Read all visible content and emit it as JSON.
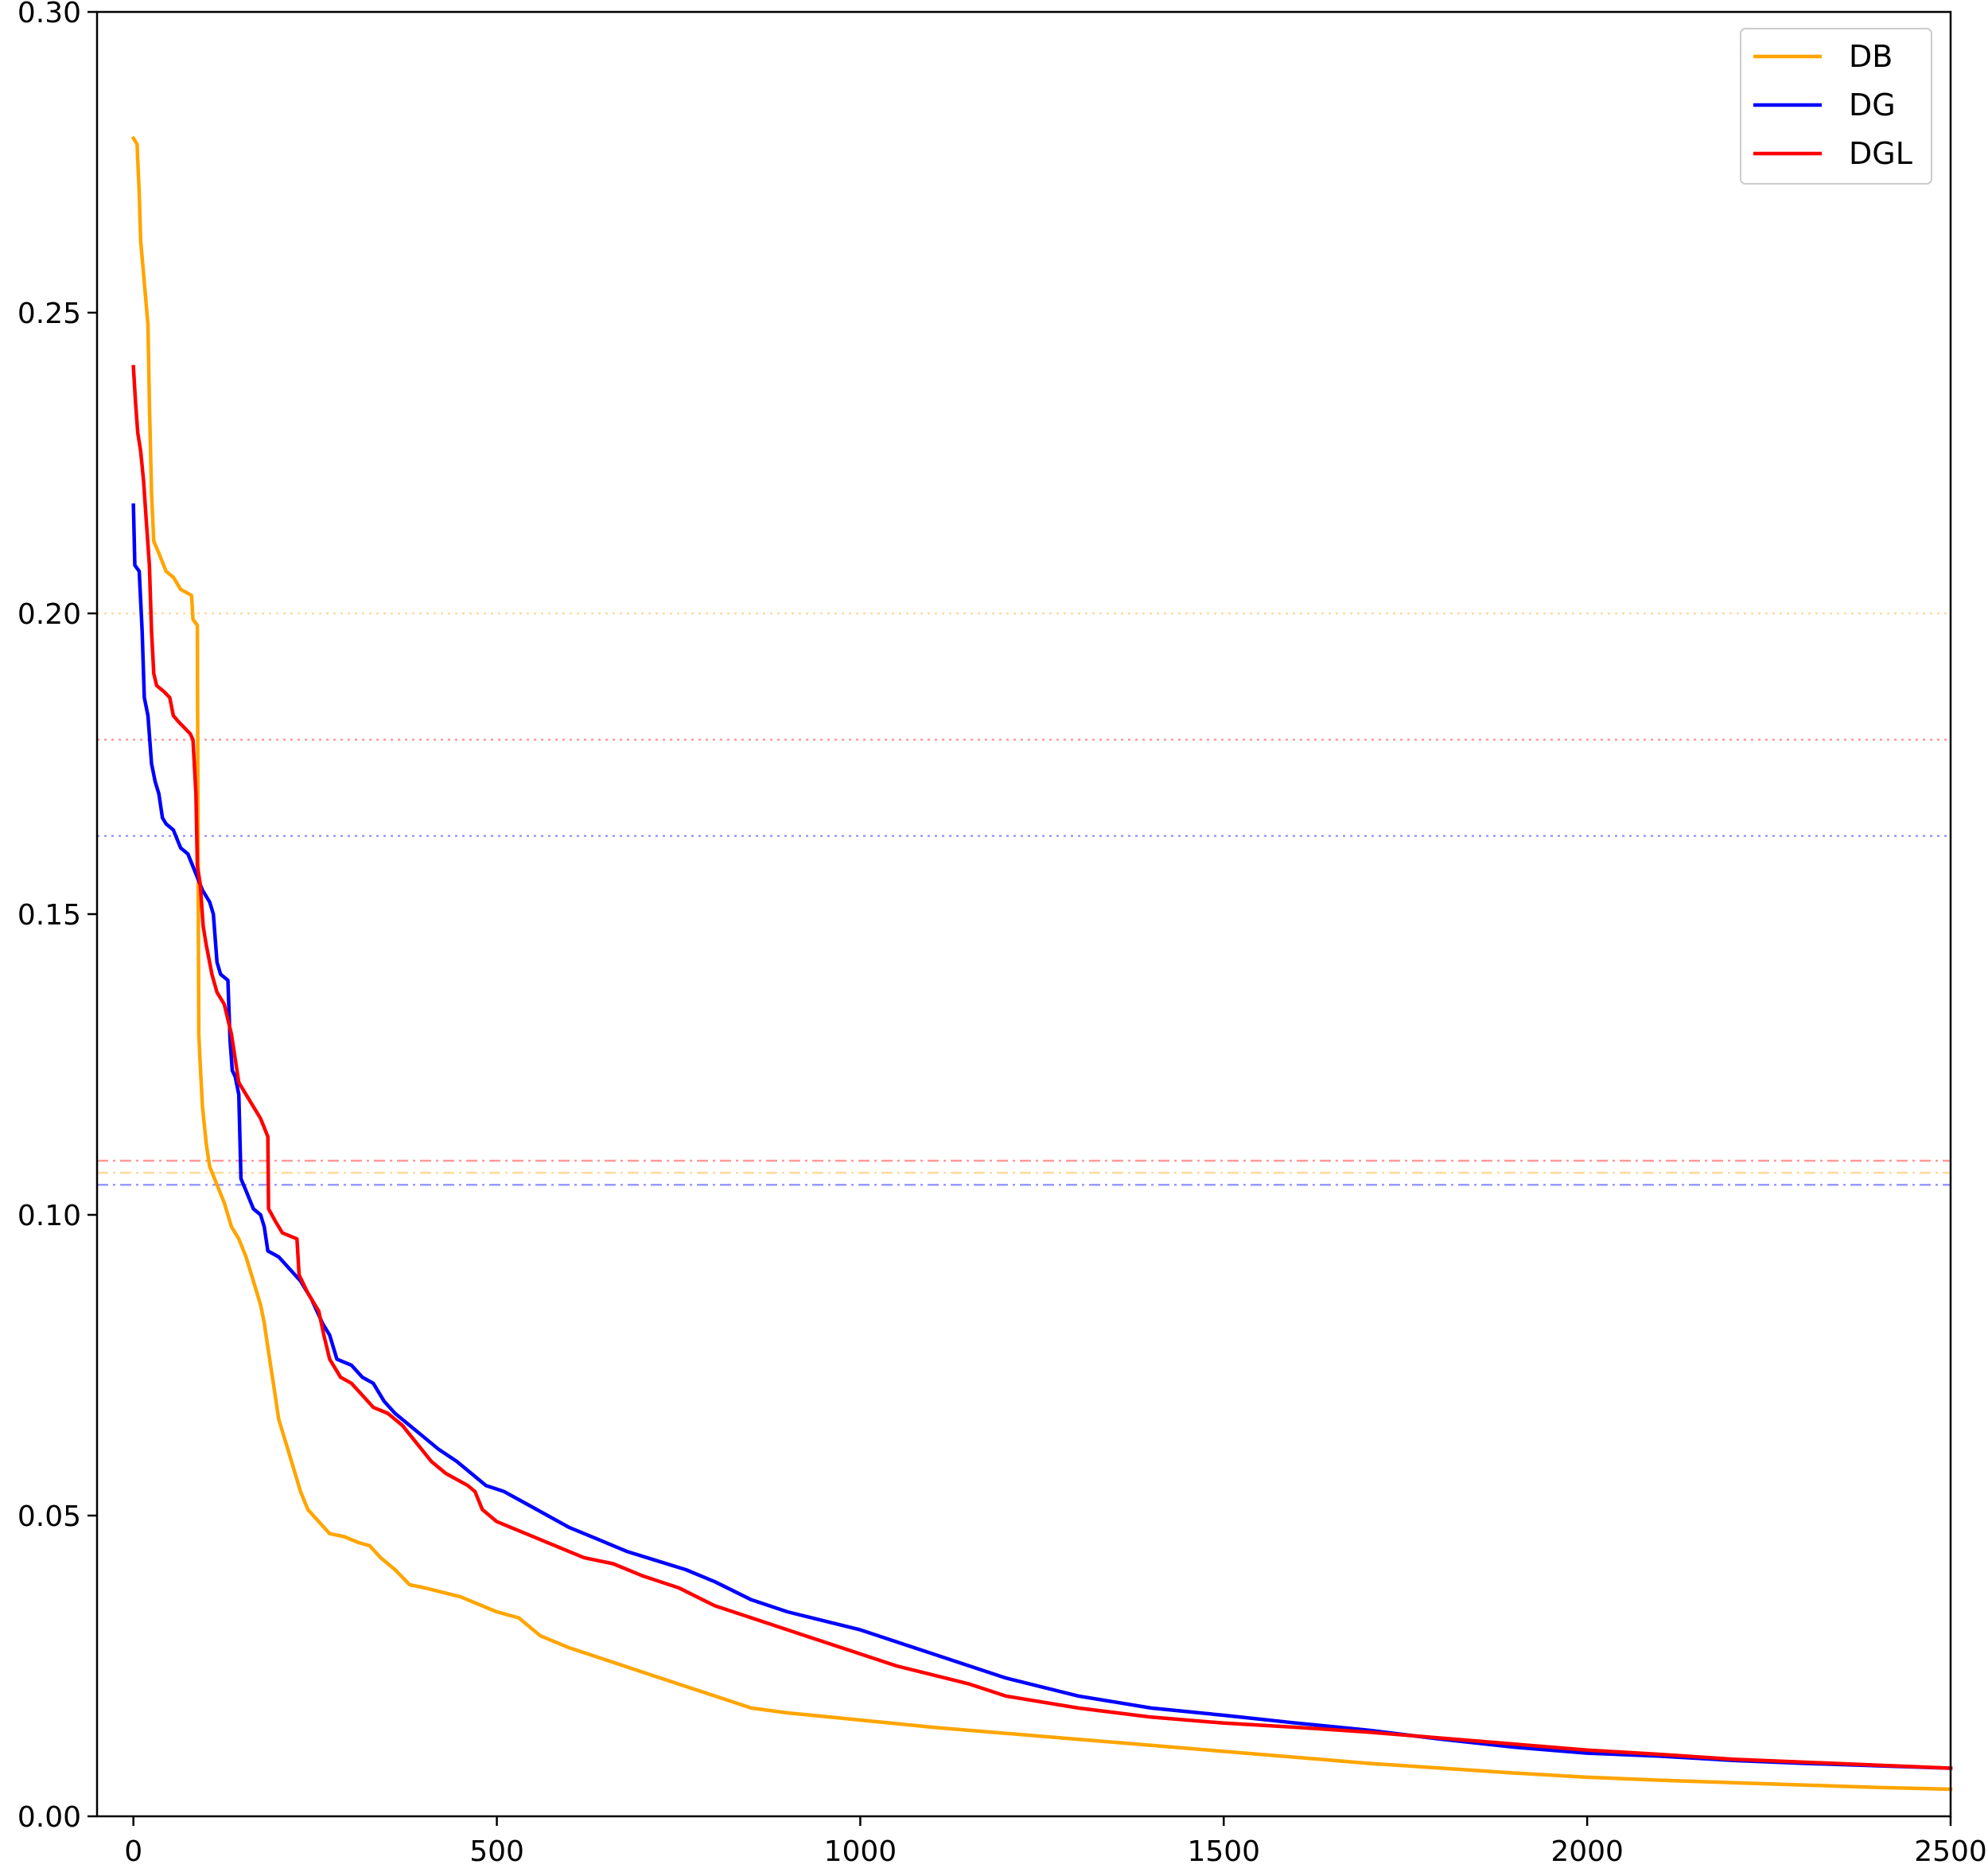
{
  "chart_data": {
    "type": "line",
    "title": "",
    "xlabel": "",
    "ylabel": "",
    "xlim": [
      -50,
      2500
    ],
    "ylim": [
      0.0,
      0.3
    ],
    "grid": false,
    "legend_position": "top-right",
    "x_ticks": [
      {
        "value": 0,
        "label": "0"
      },
      {
        "value": 500,
        "label": "500"
      },
      {
        "value": 1000,
        "label": "1000"
      },
      {
        "value": 1500,
        "label": "1500"
      },
      {
        "value": 2000,
        "label": "2000"
      },
      {
        "value": 2500,
        "label": "2500"
      }
    ],
    "y_ticks": [
      {
        "value": 0.0,
        "label": "0.00"
      },
      {
        "value": 0.05,
        "label": "0.05"
      },
      {
        "value": 0.1,
        "label": "0.10"
      },
      {
        "value": 0.15,
        "label": "0.15"
      },
      {
        "value": 0.2,
        "label": "0.20"
      },
      {
        "value": 0.25,
        "label": "0.25"
      },
      {
        "value": 0.3,
        "label": "0.30"
      }
    ],
    "series": [
      {
        "name": "DB",
        "color": "#ffa500",
        "points": [
          [
            0,
            0.279
          ],
          [
            5,
            0.278
          ],
          [
            8,
            0.27
          ],
          [
            10,
            0.262
          ],
          [
            15,
            0.255
          ],
          [
            20,
            0.248
          ],
          [
            22,
            0.235
          ],
          [
            25,
            0.22
          ],
          [
            28,
            0.212
          ],
          [
            35,
            0.21
          ],
          [
            45,
            0.207
          ],
          [
            55,
            0.206
          ],
          [
            65,
            0.204
          ],
          [
            80,
            0.203
          ],
          [
            82,
            0.199
          ],
          [
            88,
            0.198
          ],
          [
            89,
            0.16
          ],
          [
            90,
            0.13
          ],
          [
            92,
            0.125
          ],
          [
            95,
            0.118
          ],
          [
            100,
            0.112
          ],
          [
            105,
            0.108
          ],
          [
            115,
            0.105
          ],
          [
            125,
            0.102
          ],
          [
            135,
            0.098
          ],
          [
            145,
            0.096
          ],
          [
            155,
            0.093
          ],
          [
            165,
            0.089
          ],
          [
            175,
            0.085
          ],
          [
            180,
            0.082
          ],
          [
            185,
            0.078
          ],
          [
            190,
            0.074
          ],
          [
            195,
            0.07
          ],
          [
            200,
            0.066
          ],
          [
            205,
            0.064
          ],
          [
            210,
            0.062
          ],
          [
            220,
            0.058
          ],
          [
            230,
            0.054
          ],
          [
            240,
            0.051
          ],
          [
            255,
            0.049
          ],
          [
            270,
            0.047
          ],
          [
            290,
            0.0465
          ],
          [
            310,
            0.0455
          ],
          [
            325,
            0.045
          ],
          [
            340,
            0.043
          ],
          [
            360,
            0.041
          ],
          [
            380,
            0.0385
          ],
          [
            400,
            0.038
          ],
          [
            450,
            0.0365
          ],
          [
            500,
            0.034
          ],
          [
            530,
            0.033
          ],
          [
            560,
            0.03
          ],
          [
            600,
            0.028
          ],
          [
            650,
            0.026
          ],
          [
            700,
            0.024
          ],
          [
            750,
            0.022
          ],
          [
            800,
            0.02
          ],
          [
            850,
            0.018
          ],
          [
            900,
            0.0172
          ],
          [
            1000,
            0.016
          ],
          [
            1100,
            0.0148
          ],
          [
            1200,
            0.0138
          ],
          [
            1300,
            0.0128
          ],
          [
            1400,
            0.0118
          ],
          [
            1500,
            0.0108
          ],
          [
            1600,
            0.0098
          ],
          [
            1700,
            0.0088
          ],
          [
            1800,
            0.008
          ],
          [
            1900,
            0.0072
          ],
          [
            2000,
            0.0065
          ],
          [
            2100,
            0.006
          ],
          [
            2200,
            0.0056
          ],
          [
            2300,
            0.0052
          ],
          [
            2400,
            0.0048
          ],
          [
            2500,
            0.0045
          ]
        ]
      },
      {
        "name": "DG",
        "color": "#0000ff",
        "points": [
          [
            0,
            0.218
          ],
          [
            2,
            0.208
          ],
          [
            8,
            0.207
          ],
          [
            12,
            0.197
          ],
          [
            15,
            0.186
          ],
          [
            20,
            0.183
          ],
          [
            25,
            0.175
          ],
          [
            30,
            0.172
          ],
          [
            35,
            0.17
          ],
          [
            40,
            0.166
          ],
          [
            45,
            0.165
          ],
          [
            55,
            0.164
          ],
          [
            65,
            0.161
          ],
          [
            75,
            0.16
          ],
          [
            85,
            0.157
          ],
          [
            95,
            0.154
          ],
          [
            105,
            0.152
          ],
          [
            110,
            0.15
          ],
          [
            115,
            0.142
          ],
          [
            120,
            0.14
          ],
          [
            130,
            0.139
          ],
          [
            133,
            0.129
          ],
          [
            136,
            0.124
          ],
          [
            140,
            0.123
          ],
          [
            145,
            0.12
          ],
          [
            148,
            0.106
          ],
          [
            155,
            0.104
          ],
          [
            165,
            0.101
          ],
          [
            175,
            0.1
          ],
          [
            180,
            0.098
          ],
          [
            185,
            0.094
          ],
          [
            200,
            0.093
          ],
          [
            215,
            0.091
          ],
          [
            230,
            0.089
          ],
          [
            245,
            0.086
          ],
          [
            260,
            0.082
          ],
          [
            270,
            0.08
          ],
          [
            280,
            0.076
          ],
          [
            300,
            0.075
          ],
          [
            315,
            0.073
          ],
          [
            330,
            0.072
          ],
          [
            345,
            0.069
          ],
          [
            360,
            0.067
          ],
          [
            380,
            0.065
          ],
          [
            400,
            0.063
          ],
          [
            420,
            0.061
          ],
          [
            445,
            0.059
          ],
          [
            465,
            0.057
          ],
          [
            475,
            0.056
          ],
          [
            485,
            0.055
          ],
          [
            510,
            0.054
          ],
          [
            540,
            0.052
          ],
          [
            570,
            0.05
          ],
          [
            600,
            0.048
          ],
          [
            640,
            0.046
          ],
          [
            680,
            0.044
          ],
          [
            720,
            0.0425
          ],
          [
            760,
            0.041
          ],
          [
            800,
            0.039
          ],
          [
            850,
            0.036
          ],
          [
            900,
            0.034
          ],
          [
            950,
            0.0325
          ],
          [
            1000,
            0.031
          ],
          [
            1050,
            0.029
          ],
          [
            1100,
            0.027
          ],
          [
            1150,
            0.025
          ],
          [
            1200,
            0.023
          ],
          [
            1300,
            0.02
          ],
          [
            1400,
            0.018
          ],
          [
            1500,
            0.0168
          ],
          [
            1600,
            0.0155
          ],
          [
            1700,
            0.0143
          ],
          [
            1800,
            0.0128
          ],
          [
            1900,
            0.0115
          ],
          [
            2000,
            0.0105
          ],
          [
            2100,
            0.01
          ],
          [
            2200,
            0.0093
          ],
          [
            2300,
            0.0088
          ],
          [
            2400,
            0.0084
          ],
          [
            2500,
            0.008
          ]
        ]
      },
      {
        "name": "DGL",
        "color": "#ff0000",
        "points": [
          [
            0,
            0.241
          ],
          [
            3,
            0.235
          ],
          [
            6,
            0.23
          ],
          [
            10,
            0.227
          ],
          [
            14,
            0.222
          ],
          [
            18,
            0.215
          ],
          [
            22,
            0.208
          ],
          [
            25,
            0.197
          ],
          [
            28,
            0.19
          ],
          [
            32,
            0.188
          ],
          [
            42,
            0.187
          ],
          [
            50,
            0.186
          ],
          [
            55,
            0.183
          ],
          [
            62,
            0.182
          ],
          [
            70,
            0.181
          ],
          [
            78,
            0.18
          ],
          [
            82,
            0.179
          ],
          [
            86,
            0.17
          ],
          [
            88,
            0.158
          ],
          [
            92,
            0.155
          ],
          [
            96,
            0.148
          ],
          [
            100,
            0.145
          ],
          [
            108,
            0.14
          ],
          [
            115,
            0.137
          ],
          [
            125,
            0.135
          ],
          [
            135,
            0.13
          ],
          [
            145,
            0.122
          ],
          [
            155,
            0.12
          ],
          [
            165,
            0.118
          ],
          [
            175,
            0.116
          ],
          [
            185,
            0.113
          ],
          [
            186,
            0.101
          ],
          [
            195,
            0.099
          ],
          [
            205,
            0.097
          ],
          [
            225,
            0.096
          ],
          [
            228,
            0.09
          ],
          [
            240,
            0.087
          ],
          [
            255,
            0.084
          ],
          [
            262,
            0.08
          ],
          [
            270,
            0.076
          ],
          [
            285,
            0.073
          ],
          [
            300,
            0.072
          ],
          [
            315,
            0.07
          ],
          [
            330,
            0.068
          ],
          [
            350,
            0.067
          ],
          [
            370,
            0.065
          ],
          [
            390,
            0.062
          ],
          [
            410,
            0.059
          ],
          [
            430,
            0.057
          ],
          [
            460,
            0.055
          ],
          [
            470,
            0.054
          ],
          [
            480,
            0.051
          ],
          [
            500,
            0.049
          ],
          [
            540,
            0.047
          ],
          [
            580,
            0.045
          ],
          [
            620,
            0.043
          ],
          [
            660,
            0.042
          ],
          [
            700,
            0.04
          ],
          [
            750,
            0.038
          ],
          [
            800,
            0.035
          ],
          [
            850,
            0.033
          ],
          [
            900,
            0.031
          ],
          [
            950,
            0.029
          ],
          [
            1000,
            0.027
          ],
          [
            1050,
            0.025
          ],
          [
            1100,
            0.0235
          ],
          [
            1150,
            0.022
          ],
          [
            1200,
            0.02
          ],
          [
            1300,
            0.018
          ],
          [
            1400,
            0.0165
          ],
          [
            1500,
            0.0155
          ],
          [
            1600,
            0.0148
          ],
          [
            1700,
            0.014
          ],
          [
            1800,
            0.013
          ],
          [
            1900,
            0.012
          ],
          [
            2000,
            0.011
          ],
          [
            2100,
            0.0103
          ],
          [
            2200,
            0.0095
          ],
          [
            2300,
            0.009
          ],
          [
            2400,
            0.0085
          ],
          [
            2500,
            0.008
          ]
        ]
      }
    ],
    "reference_lines": [
      {
        "value": 0.2,
        "color": "#ffa500",
        "style": "dotted"
      },
      {
        "value": 0.179,
        "color": "#ff0000",
        "style": "dotted"
      },
      {
        "value": 0.163,
        "color": "#0000ff",
        "style": "dotted"
      },
      {
        "value": 0.109,
        "color": "#ff0000",
        "style": "dashdot"
      },
      {
        "value": 0.107,
        "color": "#ffa500",
        "style": "dashdot"
      },
      {
        "value": 0.105,
        "color": "#0000ff",
        "style": "dashdot"
      }
    ]
  }
}
